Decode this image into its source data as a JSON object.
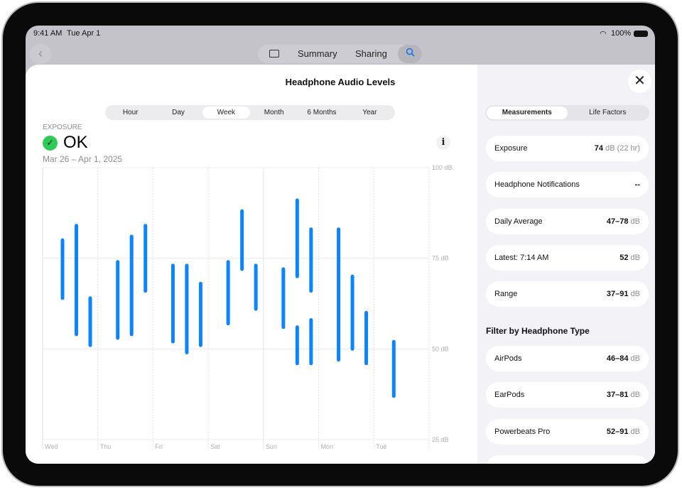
{
  "status": {
    "time": "9:41 AM",
    "date": "Tue Apr 1",
    "battery": "100%"
  },
  "nav": {
    "summary": "Summary",
    "sharing": "Sharing",
    "back_icon": "chevron-left",
    "sidebar_icon": "sidebar",
    "search_icon": "magnifyingglass"
  },
  "sheet": {
    "title": "Headphone Audio Levels"
  },
  "ranges": [
    {
      "label": "Hour"
    },
    {
      "label": "Day"
    },
    {
      "label": "Week",
      "selected": true
    },
    {
      "label": "Month"
    },
    {
      "label": "6 Months"
    },
    {
      "label": "Year"
    }
  ],
  "summary": {
    "label": "EXPOSURE",
    "status": "OK",
    "date_range": "Mar 26 – Apr 1, 2025",
    "status_color": "#2dcb55"
  },
  "side": {
    "tabs": [
      {
        "label": "Measurements",
        "selected": true
      },
      {
        "label": "Life Factors"
      }
    ],
    "rows": [
      {
        "label": "Exposure",
        "value": "74",
        "unit": " dB (22 hr)"
      },
      {
        "label": "Headphone Notifications",
        "value": "--",
        "unit": ""
      },
      {
        "label": "Daily Average",
        "value": "47–78",
        "unit": " dB"
      },
      {
        "label": "Latest: 7:14 AM",
        "value": "52",
        "unit": " dB"
      },
      {
        "label": "Range",
        "value": "37–91",
        "unit": " dB"
      }
    ],
    "filter_header": "Filter by Headphone Type",
    "filters": [
      {
        "label": "AirPods",
        "value": "46–84",
        "unit": " dB"
      },
      {
        "label": "EarPods",
        "value": "37–81",
        "unit": " dB"
      },
      {
        "label": "Powerbeats Pro",
        "value": "52–91",
        "unit": " dB"
      }
    ]
  },
  "chart_data": {
    "type": "range-bar",
    "ylim": [
      25,
      100
    ],
    "yticks": [
      "100 dB",
      "75 dB",
      "50 dB",
      "25 dB"
    ],
    "ytick_values": [
      100,
      75,
      50,
      25
    ],
    "xticks": [
      "Wed",
      "Thu",
      "Fri",
      "Sat",
      "Sun",
      "Mon",
      "Tue"
    ],
    "color": "#0a84ff",
    "grid": true,
    "bars": [
      {
        "day": 0,
        "slot": 0,
        "min": 64,
        "max": 80
      },
      {
        "day": 0,
        "slot": 1,
        "min": 54,
        "max": 84
      },
      {
        "day": 0,
        "slot": 2,
        "min": 51,
        "max": 64
      },
      {
        "day": 1,
        "slot": 0,
        "min": 53,
        "max": 74
      },
      {
        "day": 1,
        "slot": 1,
        "min": 54,
        "max": 81
      },
      {
        "day": 1,
        "slot": 2,
        "min": 66,
        "max": 84
      },
      {
        "day": 2,
        "slot": 0,
        "min": 52,
        "max": 73
      },
      {
        "day": 2,
        "slot": 1,
        "min": 49,
        "max": 73
      },
      {
        "day": 2,
        "slot": 2,
        "min": 51,
        "max": 68
      },
      {
        "day": 3,
        "slot": 0,
        "min": 57,
        "max": 74
      },
      {
        "day": 3,
        "slot": 1,
        "min": 72,
        "max": 88
      },
      {
        "day": 3,
        "slot": 2,
        "min": 61,
        "max": 73
      },
      {
        "day": 4,
        "slot": 0,
        "min": 56,
        "max": 72
      },
      {
        "day": 4,
        "slot": 1,
        "min": 70,
        "max": 91
      },
      {
        "day": 4,
        "slot": 2,
        "min": 66,
        "max": 83
      },
      {
        "day": 4,
        "slot": 1,
        "min": 46,
        "max": 56
      },
      {
        "day": 4,
        "slot": 2,
        "min": 46,
        "max": 58
      },
      {
        "day": 5,
        "slot": 0,
        "min": 47,
        "max": 83
      },
      {
        "day": 5,
        "slot": 1,
        "min": 50,
        "max": 70
      },
      {
        "day": 5,
        "slot": 2,
        "min": 46,
        "max": 60
      },
      {
        "day": 6,
        "slot": 0,
        "min": 37,
        "max": 52
      }
    ]
  }
}
